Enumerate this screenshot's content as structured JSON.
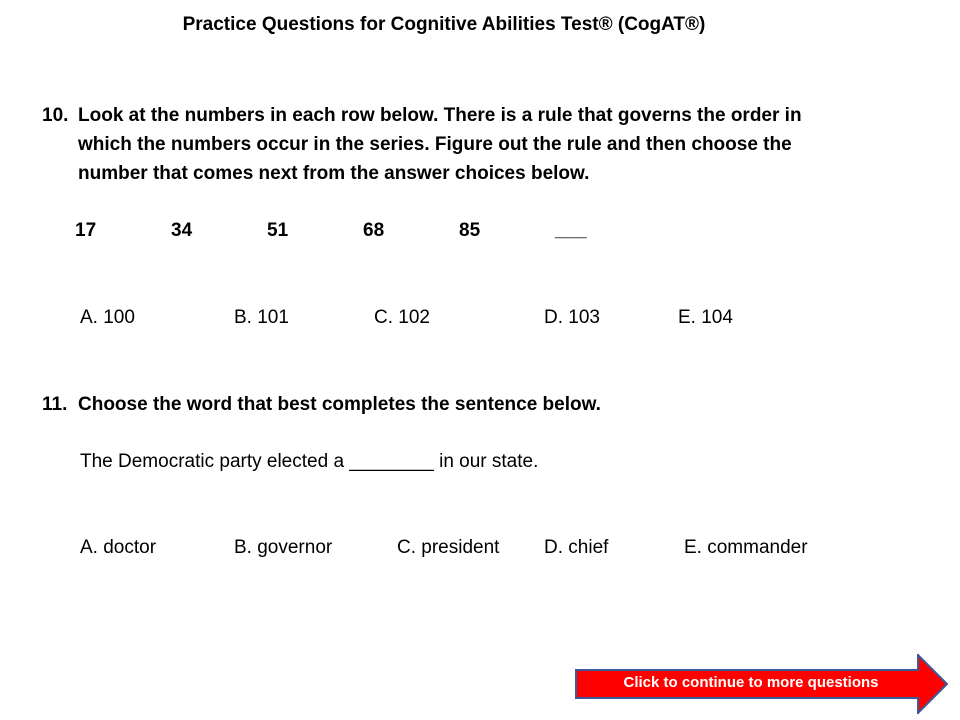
{
  "title": "Practice Questions for Cognitive Abilities Test® (CogAT®)",
  "q10": {
    "number": "10.",
    "lines": [
      "Look at the numbers in each row below.  There is a rule that governs the order in",
      "which the numbers occur in the series.  Figure out the rule and then choose the",
      "number that comes next from the answer choices below."
    ],
    "sequence": [
      "17",
      "34",
      "51",
      "68",
      "85",
      "___"
    ],
    "choices": [
      "A.  100",
      "B.  101",
      "C.  102",
      "D.  103",
      "E.  104"
    ]
  },
  "q11": {
    "number": "11.",
    "prompt": "Choose the word that best completes the sentence below.",
    "sentence": "The Democratic party elected a ________ in our state.",
    "choices": [
      "A.  doctor",
      "B.  governor",
      "C.  president",
      "D.  chief",
      "E.  commander"
    ]
  },
  "continue_button": {
    "label": "Click to continue to more questions",
    "fill_color": "#ff0000",
    "border_color": "#3b5998",
    "icon": "right-arrow-icon"
  }
}
